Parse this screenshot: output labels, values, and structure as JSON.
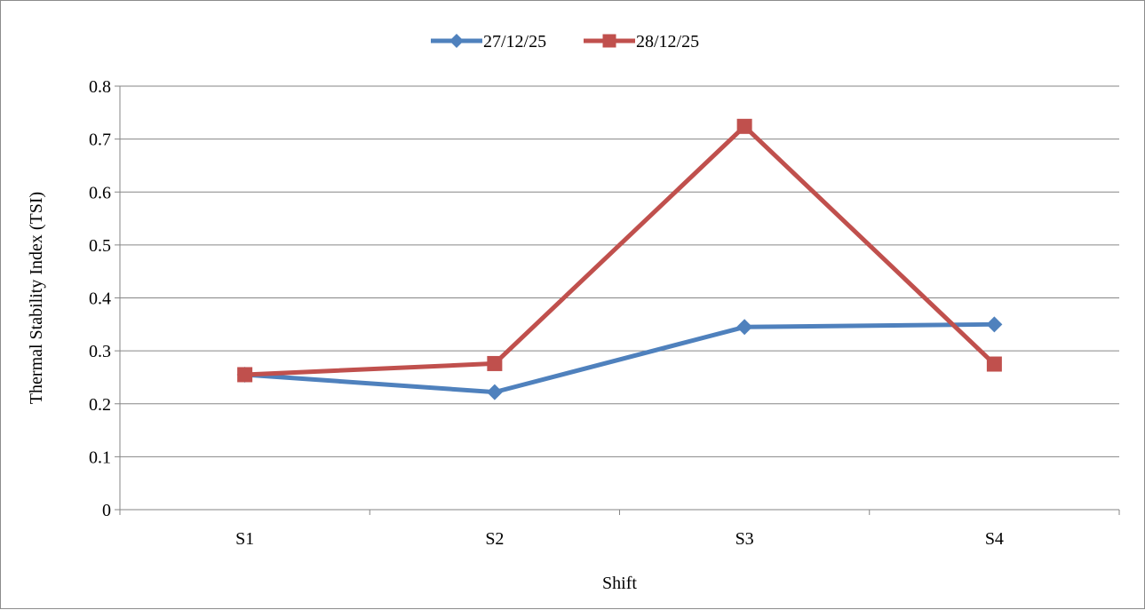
{
  "chart_data": {
    "type": "line",
    "categories": [
      "S1",
      "S2",
      "S3",
      "S4"
    ],
    "series": [
      {
        "name": "27/12/25",
        "values": [
          0.255,
          0.222,
          0.345,
          0.35
        ],
        "color": "#4f81bd",
        "marker": "diamond"
      },
      {
        "name": "28/12/25",
        "values": [
          0.255,
          0.276,
          0.724,
          0.275
        ],
        "color": "#c0504d",
        "marker": "square"
      }
    ],
    "title": "",
    "xlabel": "Shift",
    "ylabel": "Thermal Stability Index (TSI)",
    "ylim": [
      0,
      0.8
    ],
    "yticks": [
      "0",
      "0.1",
      "0.2",
      "0.3",
      "0.4",
      "0.5",
      "0.6",
      "0.7",
      "0.8"
    ],
    "grid": true,
    "legend_position": "top-center"
  }
}
